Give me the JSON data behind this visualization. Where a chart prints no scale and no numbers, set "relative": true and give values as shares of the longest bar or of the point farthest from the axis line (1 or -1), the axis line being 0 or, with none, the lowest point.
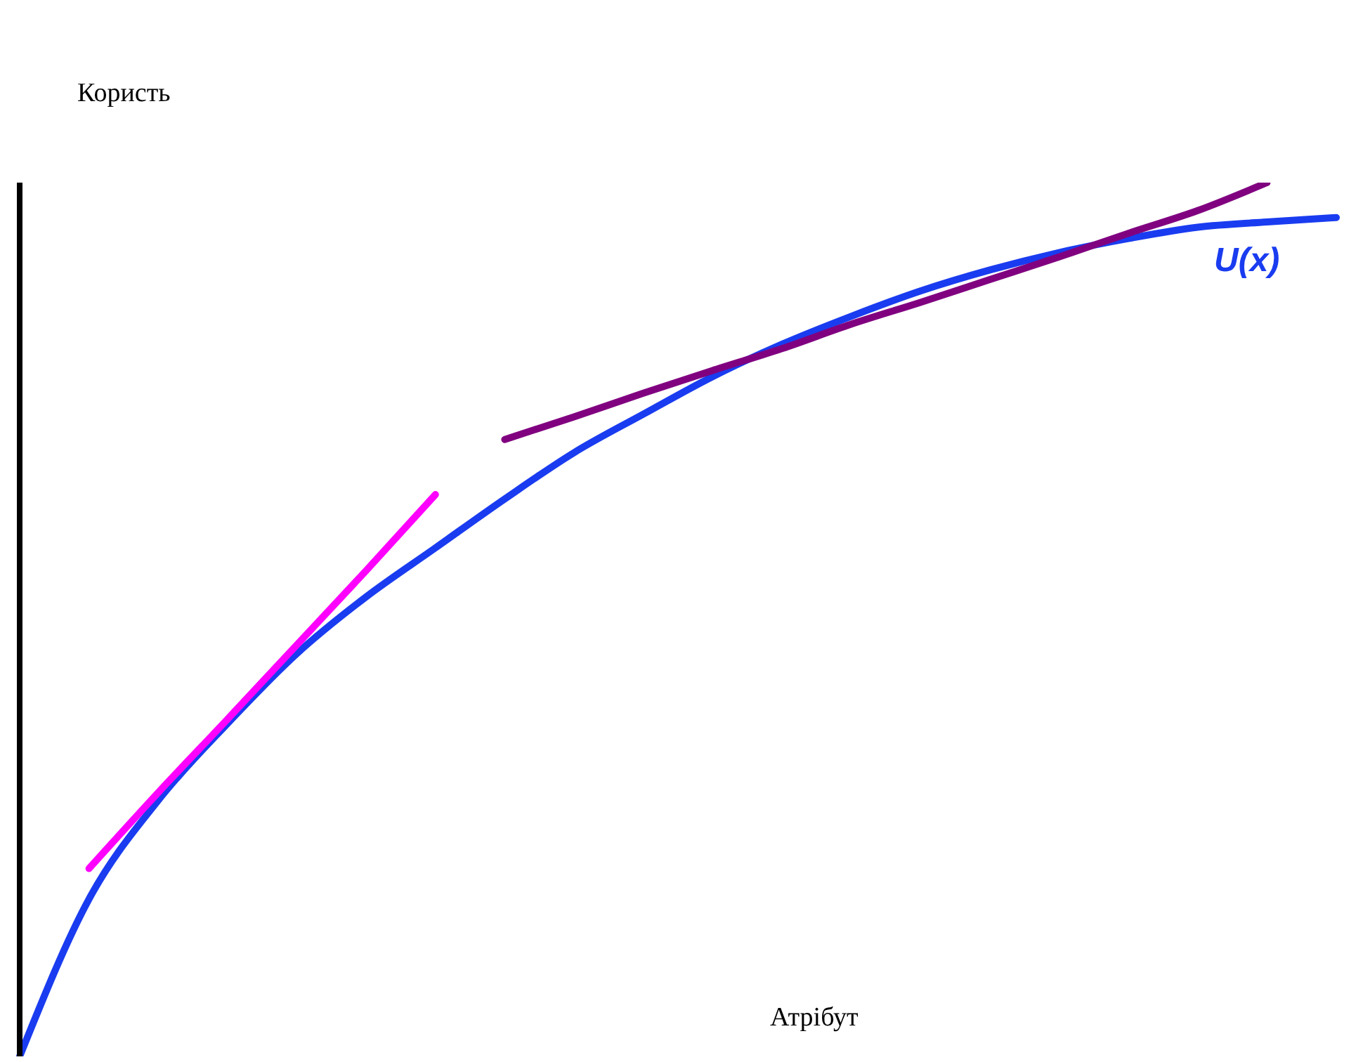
{
  "chart_data": {
    "type": "line",
    "relative": true,
    "ylabel": "Користь",
    "xlabel": "Атрібут",
    "marker": "none",
    "line_style": "solid",
    "grid": false,
    "legend": false,
    "categories": [
      null,
      null,
      null,
      null,
      null,
      null,
      null,
      null,
      null,
      null,
      null,
      null,
      null,
      null,
      null,
      null,
      null,
      null,
      null,
      null
    ],
    "series": [
      {
        "name": "U(x)",
        "color": "#1a3cf0",
        "values": [
          0,
          0.18,
          0.293,
          0.381,
          0.461,
          0.526,
          0.582,
          0.638,
          0.691,
          0.735,
          0.778,
          0.815,
          0.847,
          0.876,
          0.9,
          0.92,
          0.936,
          0.949,
          0.955,
          0.96
        ]
      },
      {
        "color": "#ff00ff",
        "values": [
          null,
          0.215,
          0.302,
          0.386,
          0.471,
          0.556,
          0.643,
          null,
          null,
          null,
          null,
          null,
          null,
          null,
          null,
          null,
          null,
          null,
          null,
          null
        ]
      },
      {
        "color": "#800080",
        "values": [
          null,
          null,
          null,
          null,
          null,
          null,
          null,
          0.706,
          0.732,
          0.759,
          0.785,
          0.81,
          0.838,
          0.863,
          0.889,
          0.915,
          0.942,
          0.968,
          1,
          null
        ]
      }
    ]
  }
}
